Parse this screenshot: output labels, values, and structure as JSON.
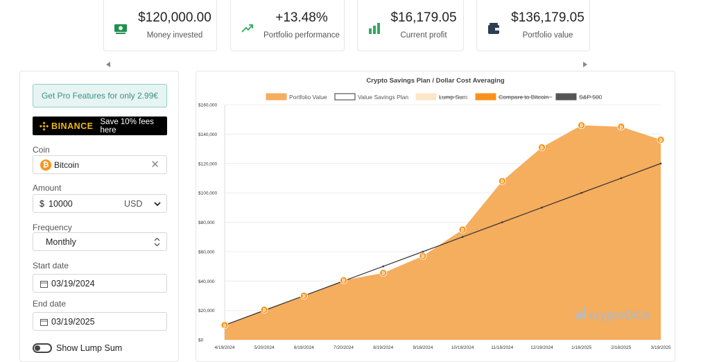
{
  "stats": [
    {
      "value": "$120,000.00",
      "label": "Money invested",
      "icon": "money-icon"
    },
    {
      "value": "+13.48%",
      "label": "Portfolio performance",
      "icon": "trend-up-icon"
    },
    {
      "value": "$16,179.05",
      "label": "Current profit",
      "icon": "bar-chart-icon"
    },
    {
      "value": "$136,179.05",
      "label": "Portfolio value",
      "icon": "wallet-icon"
    }
  ],
  "sidebar": {
    "pro_button": "Get Pro Features for only 2.99€",
    "binance": {
      "logo": "BINANCE",
      "text": "Save 10% fees here"
    },
    "coin": {
      "label": "Coin",
      "value": "Bitcoin",
      "icon": "bitcoin-icon"
    },
    "amount": {
      "label": "Amount",
      "prefix": "$",
      "value": "10000",
      "currency": "USD"
    },
    "frequency": {
      "label": "Frequency",
      "value": "Monthly"
    },
    "start_date": {
      "label": "Start date",
      "value": "03/19/2024"
    },
    "end_date": {
      "label": "End date",
      "value": "03/19/2025"
    },
    "lump_sum_toggle": {
      "label": "Show Lump Sum"
    }
  },
  "colors": {
    "accent": "#f7931a",
    "area": "#f5ad5e",
    "pro_text": "#3f8f86"
  },
  "chart_data": {
    "type": "area",
    "title": "Crypto Savings Plan / Dollar Cost Averaging",
    "legend": [
      {
        "name": "Portfolio Value",
        "color": "#f5ad5e",
        "struck": false
      },
      {
        "name": "Value Savings Plan",
        "color": "#333333",
        "struck": false,
        "outline": true
      },
      {
        "name": "Lump Sum",
        "color": "#fde6c8",
        "struck": true
      },
      {
        "name": "Compare to Bitcoin",
        "color": "#f7931a",
        "struck": true
      },
      {
        "name": "S&P 500",
        "color": "#555555",
        "struck": true
      }
    ],
    "x": [
      "4/19/2024",
      "5/20/2024",
      "6/19/2024",
      "7/20/2024",
      "8/19/2024",
      "9/18/2024",
      "10/19/2024",
      "11/18/2024",
      "12/19/2024",
      "1/18/2025",
      "2/18/2025",
      "3/19/2025"
    ],
    "series": [
      {
        "name": "Portfolio Value",
        "values": [
          10000,
          20500,
          30000,
          40500,
          45500,
          57000,
          75000,
          108000,
          131000,
          146000,
          145000,
          136179
        ]
      },
      {
        "name": "Value Savings Plan",
        "values": [
          10000,
          20000,
          30000,
          40000,
          50000,
          60000,
          70000,
          80000,
          90000,
          100000,
          110000,
          120000
        ]
      }
    ],
    "ylim": [
      0,
      160000
    ],
    "yticks": [
      0,
      20000,
      40000,
      60000,
      80000,
      100000,
      120000,
      140000,
      160000
    ],
    "ytick_labels": [
      "$0",
      "$20,000",
      "$40,000",
      "$60,000",
      "$80,000",
      "$100,000",
      "$120,000",
      "$140,000",
      "$160,000"
    ],
    "watermark": "cryptoDCA"
  }
}
